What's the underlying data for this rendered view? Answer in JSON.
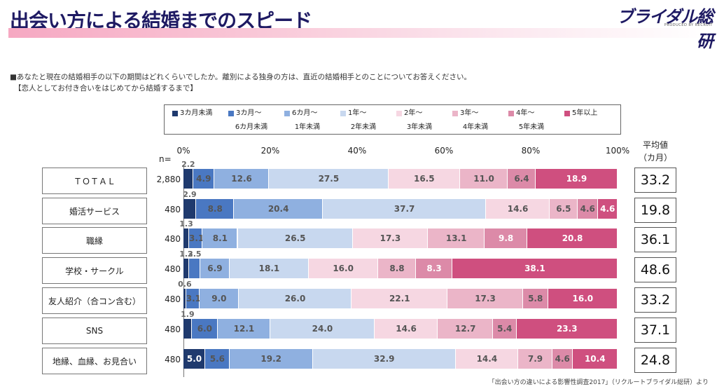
{
  "title": "出会い方による結婚までのスピード",
  "logo": {
    "name": "ブライダル総研",
    "sub": "PRODUCED BY RECRUIT"
  },
  "question": "■あなたと現在の結婚相手の以下の期間はどれくらいでしたか。離別による独身の方は、直近の結婚相手とのことについてお答えください。",
  "question_note": "【恋人としてお付き合いをはじめてから結婚するまで】",
  "n_label": "n=",
  "avg_header": {
    "title": "平均値",
    "unit": "（カ月）"
  },
  "source": "「出会い方の違いによる影響性調査2017」（リクルートブライダル総研）より",
  "colors": [
    "#1f3a6e",
    "#4a78c2",
    "#8fb0e0",
    "#c8d8ef",
    "#f6d7e2",
    "#ebb5c8",
    "#dc8aa8",
    "#cf4f7f"
  ],
  "chart_data": {
    "type": "bar",
    "orientation": "horizontal",
    "stacked": true,
    "xlim": [
      0,
      100
    ],
    "ticks": [
      "0%",
      "20%",
      "40%",
      "60%",
      "80%",
      "100%"
    ],
    "legend": [
      {
        "line1": "3カ月未満",
        "line2": ""
      },
      {
        "line1": "3カ月～",
        "line2": "6カ月未満"
      },
      {
        "line1": "6カ月～",
        "line2": "1年未満"
      },
      {
        "line1": "1年～",
        "line2": "2年未満"
      },
      {
        "line1": "2年～",
        "line2": "3年未満"
      },
      {
        "line1": "3年～",
        "line2": "4年未満"
      },
      {
        "line1": "4年～",
        "line2": "5年未満"
      },
      {
        "line1": "5年以上",
        "line2": ""
      }
    ],
    "rows": [
      {
        "label": "ＴＯＴＡＬ",
        "n": "2,880",
        "values": [
          2.2,
          4.9,
          12.6,
          27.5,
          16.5,
          11.0,
          6.4,
          18.9
        ],
        "labels": [
          "2.2",
          "4.9",
          "12.6",
          "27.5",
          "16.5",
          "11.0",
          "6.4",
          "18.9"
        ],
        "avg": "33.2"
      },
      {
        "label": "婚活サービス",
        "n": "480",
        "values": [
          2.9,
          8.8,
          20.4,
          37.7,
          14.6,
          6.5,
          4.6,
          4.6
        ],
        "labels": [
          "2.9",
          "8.8",
          "20.4",
          "37.7",
          "14.6",
          "6.5",
          "4.6",
          "4.6"
        ],
        "avg": "19.8"
      },
      {
        "label": "職縁",
        "n": "480",
        "values": [
          1.3,
          3.1,
          8.1,
          26.5,
          17.3,
          13.1,
          9.8,
          20.8
        ],
        "labels": [
          "1.3",
          "3.1",
          "8.1",
          "26.5",
          "17.3",
          "13.1",
          "9.8",
          "20.8"
        ],
        "avg": "36.1"
      },
      {
        "label": "学校・サークル",
        "n": "480",
        "values": [
          1.3,
          2.5,
          6.9,
          18.1,
          16.0,
          8.8,
          8.3,
          38.1
        ],
        "labels": [
          "1.3",
          "2.5",
          "6.9",
          "18.1",
          "16.0",
          "8.8",
          "8.3",
          "38.1"
        ],
        "avg": "48.6"
      },
      {
        "label": "友人紹介（合コン含む）",
        "n": "480",
        "values": [
          0.6,
          3.1,
          9.0,
          26.0,
          22.1,
          17.3,
          5.8,
          16.0
        ],
        "labels": [
          "0.6",
          "3.1",
          "9.0",
          "26.0",
          "22.1",
          "17.3",
          "5.8",
          "16.0"
        ],
        "avg": "33.2"
      },
      {
        "label": "SNS",
        "n": "480",
        "values": [
          1.9,
          6.0,
          12.1,
          24.0,
          14.6,
          12.7,
          5.4,
          23.3
        ],
        "labels": [
          "1.9",
          "6.0",
          "12.1",
          "24.0",
          "14.6",
          "12.7",
          "5.4",
          "23.3"
        ],
        "avg": "37.1"
      },
      {
        "label": "地縁、血縁、お見合い",
        "n": "480",
        "values": [
          5.0,
          5.6,
          19.2,
          32.9,
          14.4,
          7.9,
          4.6,
          10.4
        ],
        "labels": [
          "5.0",
          "5.6",
          "19.2",
          "32.9",
          "14.4",
          "7.9",
          "4.6",
          "10.4"
        ],
        "avg": "24.8"
      }
    ]
  }
}
